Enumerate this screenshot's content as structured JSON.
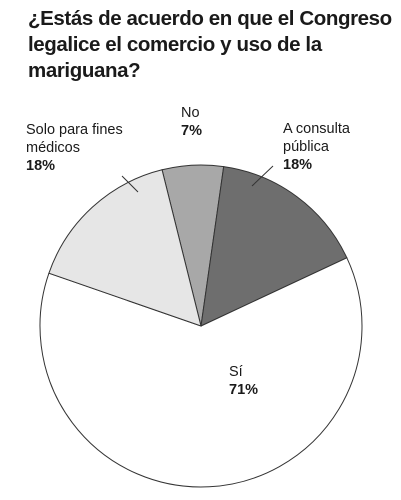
{
  "chart_data": {
    "type": "pie",
    "title": "¿Estás de acuerdo en que el Congreso legalice el comercio y uso de la mariguana?",
    "categories": [
      "No",
      "A consulta pública",
      "Sí",
      "Solo para fines médicos"
    ],
    "values": [
      7,
      18,
      71,
      18
    ],
    "value_labels": [
      "7%",
      "18%",
      "71%",
      "18%"
    ],
    "colors": [
      "#a8a8a8",
      "#6e6e6e",
      "#ffffff",
      "#e6e6e6"
    ]
  }
}
